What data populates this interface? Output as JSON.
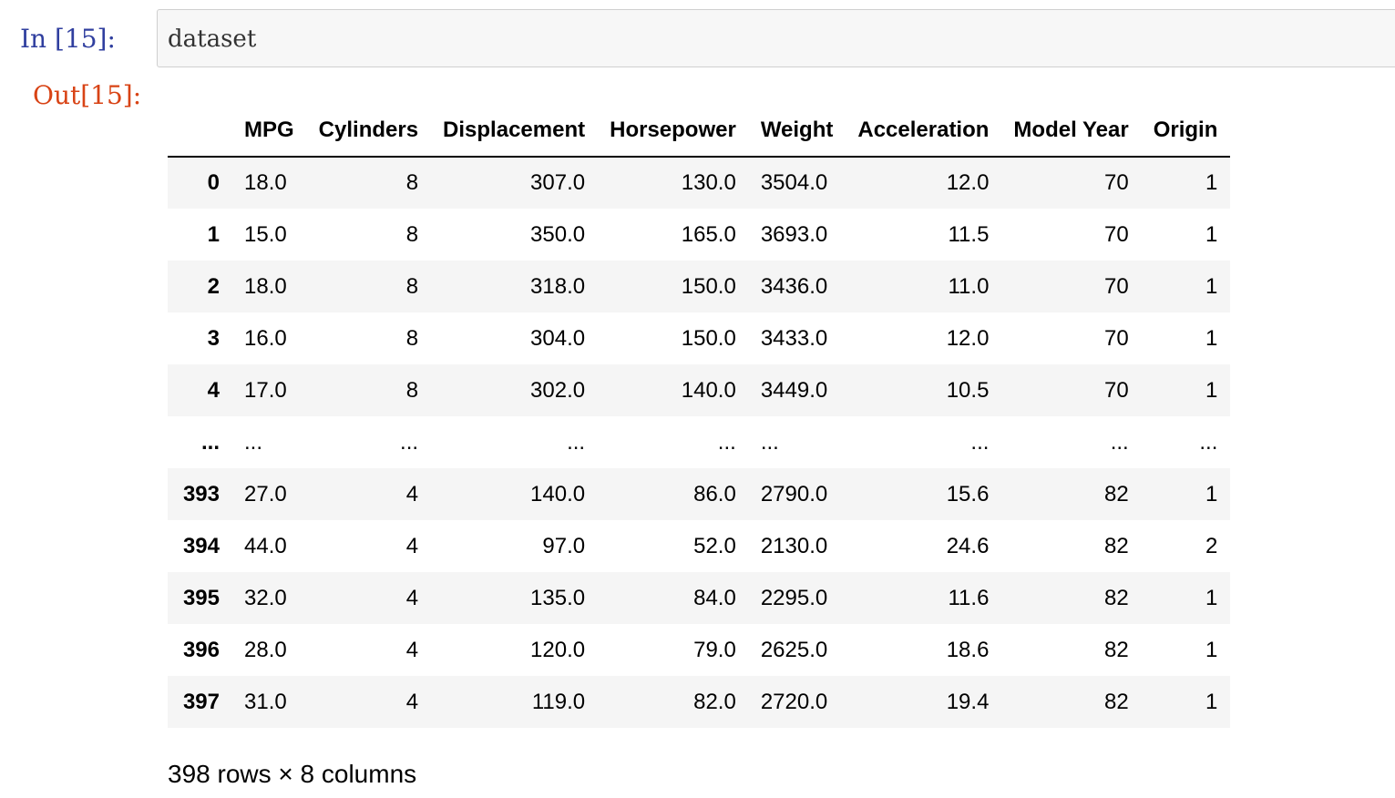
{
  "cell": {
    "in_prompt": "In  [15]:",
    "out_prompt": "Out[15]:",
    "code": "dataset"
  },
  "dataframe": {
    "columns": [
      "MPG",
      "Cylinders",
      "Displacement",
      "Horsepower",
      "Weight",
      "Acceleration",
      "Model Year",
      "Origin"
    ],
    "rows": [
      {
        "index": "0",
        "cells": [
          "18.0",
          "8",
          "307.0",
          "130.0",
          "3504.0",
          "12.0",
          "70",
          "1"
        ]
      },
      {
        "index": "1",
        "cells": [
          "15.0",
          "8",
          "350.0",
          "165.0",
          "3693.0",
          "11.5",
          "70",
          "1"
        ]
      },
      {
        "index": "2",
        "cells": [
          "18.0",
          "8",
          "318.0",
          "150.0",
          "3436.0",
          "11.0",
          "70",
          "1"
        ]
      },
      {
        "index": "3",
        "cells": [
          "16.0",
          "8",
          "304.0",
          "150.0",
          "3433.0",
          "12.0",
          "70",
          "1"
        ]
      },
      {
        "index": "4",
        "cells": [
          "17.0",
          "8",
          "302.0",
          "140.0",
          "3449.0",
          "10.5",
          "70",
          "1"
        ]
      },
      {
        "index": "...",
        "cells": [
          "...",
          "...",
          "...",
          "...",
          "...",
          "...",
          "...",
          "..."
        ]
      },
      {
        "index": "393",
        "cells": [
          "27.0",
          "4",
          "140.0",
          "86.0",
          "2790.0",
          "15.6",
          "82",
          "1"
        ]
      },
      {
        "index": "394",
        "cells": [
          "44.0",
          "4",
          "97.0",
          "52.0",
          "2130.0",
          "24.6",
          "82",
          "2"
        ]
      },
      {
        "index": "395",
        "cells": [
          "32.0",
          "4",
          "135.0",
          "84.0",
          "2295.0",
          "11.6",
          "82",
          "1"
        ]
      },
      {
        "index": "396",
        "cells": [
          "28.0",
          "4",
          "120.0",
          "79.0",
          "2625.0",
          "18.6",
          "82",
          "1"
        ]
      },
      {
        "index": "397",
        "cells": [
          "31.0",
          "4",
          "119.0",
          "82.0",
          "2720.0",
          "19.4",
          "82",
          "1"
        ]
      }
    ],
    "shape_note": "398 rows × 8 columns"
  }
}
